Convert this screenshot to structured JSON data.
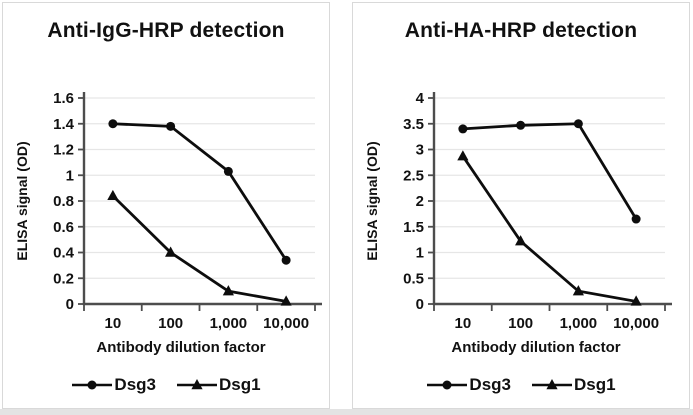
{
  "style": {
    "line_color": "#0d0d0d",
    "marker_color": "#0d0d0d",
    "grid_color": "#e6e6e6",
    "axis_color": "#4d4d4d",
    "text_color": "#111111",
    "panel_border_color": "#d9d9d9",
    "background_color": "#ffffff"
  },
  "chart_data": [
    {
      "type": "line",
      "title": "Anti-IgG-HRP detection",
      "xlabel": "Antibody dilution factor",
      "ylabel": "ELISA signal (OD)",
      "categories": [
        "10",
        "100",
        "1,000",
        "10,000"
      ],
      "series": [
        {
          "name": "Dsg3",
          "marker": "circle",
          "values": [
            1.4,
            1.38,
            1.03,
            0.34
          ]
        },
        {
          "name": "Dsg1",
          "marker": "triangle",
          "values": [
            0.84,
            0.4,
            0.1,
            0.02
          ]
        }
      ],
      "ylim": [
        0,
        1.6
      ],
      "yticks": [
        "0",
        "0.2",
        "0.4",
        "0.6",
        "0.8",
        "1",
        "1.2",
        "1.4",
        "1.6"
      ],
      "grid": true,
      "legend_position": "bottom",
      "x_scale_note": "categorical (log-spaced dilution factors)"
    },
    {
      "type": "line",
      "title": "Anti-HA-HRP detection",
      "xlabel": "Antibody dilution factor",
      "ylabel": "ELISA signal (OD)",
      "categories": [
        "10",
        "100",
        "1,000",
        "10,000"
      ],
      "series": [
        {
          "name": "Dsg3",
          "marker": "circle",
          "values": [
            3.4,
            3.47,
            3.5,
            1.65
          ]
        },
        {
          "name": "Dsg1",
          "marker": "triangle",
          "values": [
            2.87,
            1.22,
            0.25,
            0.05
          ]
        }
      ],
      "ylim": [
        0,
        4
      ],
      "yticks": [
        "0",
        "0.5",
        "1",
        "1.5",
        "2",
        "2.5",
        "3",
        "3.5",
        "4"
      ],
      "grid": true,
      "legend_position": "bottom",
      "x_scale_note": "categorical (log-spaced dilution factors)"
    }
  ]
}
